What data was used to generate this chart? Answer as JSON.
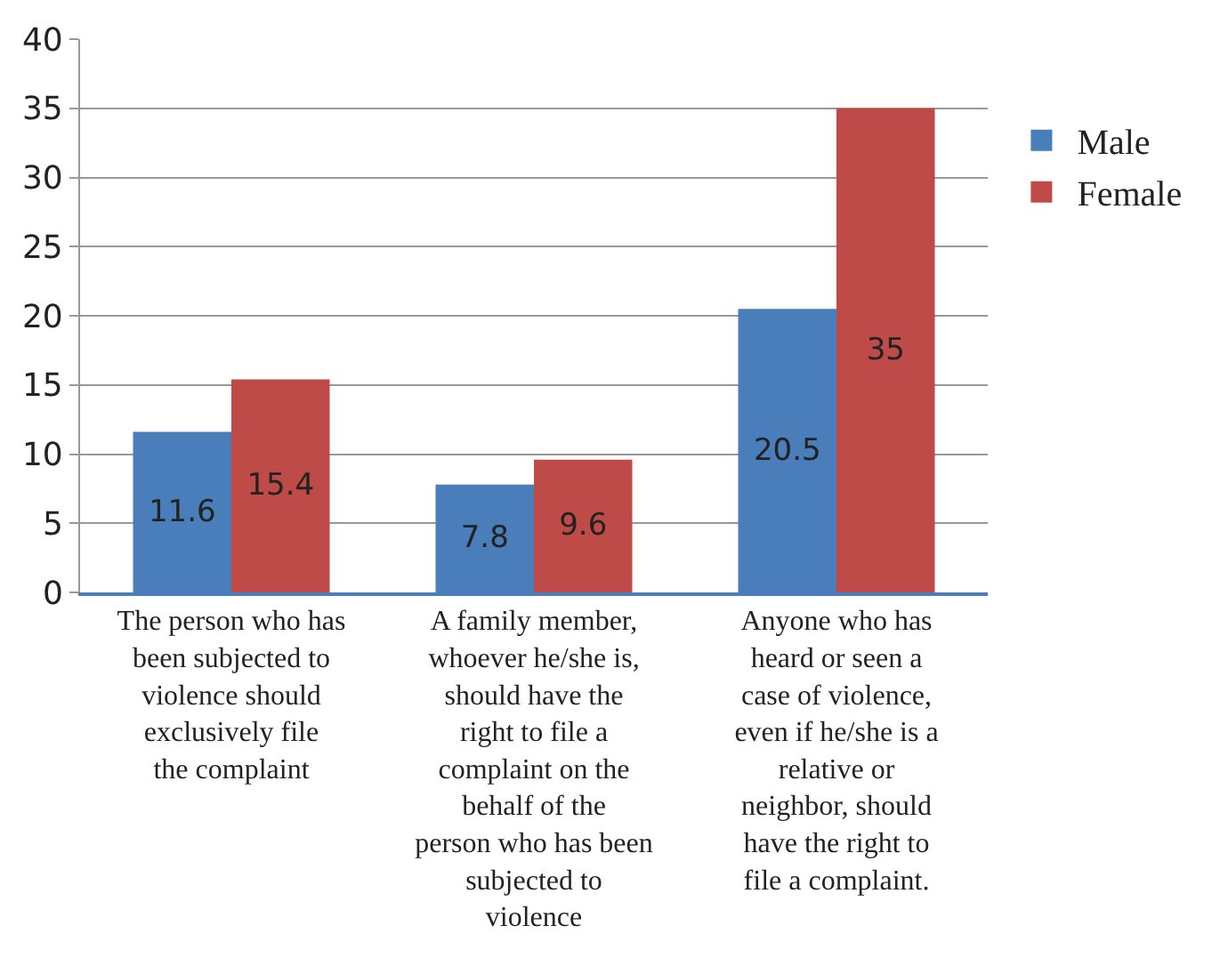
{
  "chart_data": {
    "type": "bar",
    "categories": [
      "The person who has been subjected to violence should exclusively file the complaint",
      "A family member, whoever he/she is, should have the right to file a complaint on the behalf of the person who has been subjected to violence",
      "Anyone who has heard or seen a case of violence, even if he/she is a relative or neighbor, should have the right to file a complaint."
    ],
    "series": [
      {
        "name": "Male",
        "color": "#4a7ebb",
        "values": [
          11.6,
          7.8,
          20.5
        ]
      },
      {
        "name": "Female",
        "color": "#be4b48",
        "values": [
          15.4,
          9.6,
          35
        ]
      }
    ],
    "ylim": [
      0,
      40
    ],
    "yticks": [
      0,
      5,
      10,
      15,
      20,
      25,
      30,
      35,
      40
    ],
    "grid": "y",
    "legend": "right",
    "data_labels": true
  }
}
